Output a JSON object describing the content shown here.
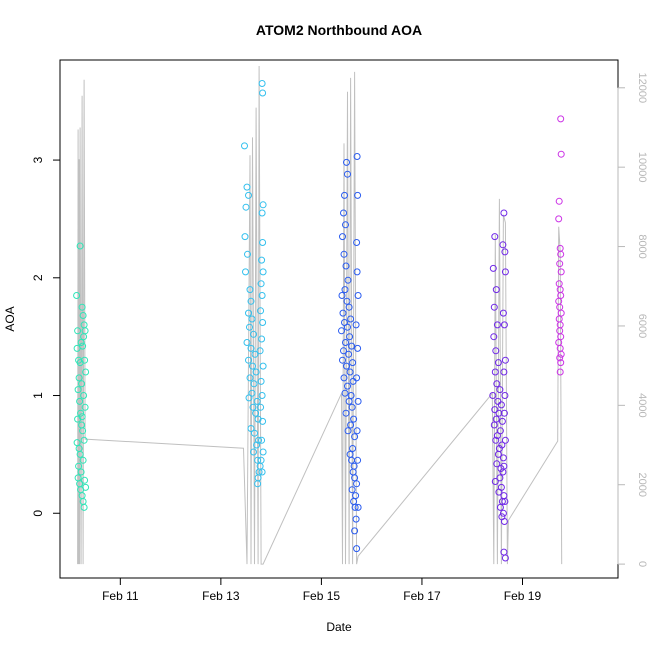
{
  "chart_data": {
    "type": "scatter",
    "title": "ATOM2 Northbound AOA",
    "xlabel": "Date",
    "ylabel": "AOA",
    "x_unit": "days (February)",
    "xlim": [
      9.8,
      20.9
    ],
    "ylim": [
      -0.55,
      3.85
    ],
    "y2lim": [
      -350,
      12700
    ],
    "x_ticks": [
      {
        "value": 11,
        "label": "Feb 11"
      },
      {
        "value": 13,
        "label": "Feb 13"
      },
      {
        "value": 15,
        "label": "Feb 15"
      },
      {
        "value": 17,
        "label": "Feb 17"
      },
      {
        "value": 19,
        "label": "Feb 19"
      }
    ],
    "y_ticks": [
      {
        "value": 0,
        "label": "0"
      },
      {
        "value": 1,
        "label": "1"
      },
      {
        "value": 2,
        "label": "2"
      },
      {
        "value": 3,
        "label": "3"
      }
    ],
    "y2_ticks": [
      {
        "value": 0,
        "label": "0"
      },
      {
        "value": 2000,
        "label": "2000"
      },
      {
        "value": 4000,
        "label": "4000"
      },
      {
        "value": 6000,
        "label": "6000"
      },
      {
        "value": 8000,
        "label": "8000"
      },
      {
        "value": 10000,
        "label": "10000"
      },
      {
        "value": 12000,
        "label": "12000"
      }
    ],
    "grid": false,
    "legend": "none",
    "series": [
      {
        "color": "#2ee6b8",
        "x_range": [
          10.12,
          10.32
        ],
        "points": [
          [
            10.13,
            1.85
          ],
          [
            10.15,
            1.55
          ],
          [
            10.14,
            1.4
          ],
          [
            10.17,
            1.3
          ],
          [
            10.2,
            1.28
          ],
          [
            10.22,
            1.45
          ],
          [
            10.18,
            1.15
          ],
          [
            10.16,
            1.05
          ],
          [
            10.19,
            0.95
          ],
          [
            10.21,
            0.85
          ],
          [
            10.15,
            0.8
          ],
          [
            10.23,
            0.75
          ],
          [
            10.25,
            0.7
          ],
          [
            10.14,
            0.6
          ],
          [
            10.18,
            0.55
          ],
          [
            10.2,
            0.5
          ],
          [
            10.17,
            0.4
          ],
          [
            10.22,
            0.35
          ],
          [
            10.16,
            0.3
          ],
          [
            10.19,
            0.25
          ],
          [
            10.21,
            0.2
          ],
          [
            10.24,
            0.15
          ],
          [
            10.26,
            0.1
          ],
          [
            10.28,
            0.05
          ],
          [
            10.2,
            2.27
          ],
          [
            10.24,
            1.75
          ],
          [
            10.26,
            1.68
          ],
          [
            10.28,
            1.6
          ],
          [
            10.3,
            1.55
          ],
          [
            10.27,
            1.5
          ],
          [
            10.25,
            1.42
          ],
          [
            10.29,
            1.3
          ],
          [
            10.31,
            1.2
          ],
          [
            10.23,
            1.1
          ],
          [
            10.27,
            1.0
          ],
          [
            10.3,
            0.9
          ],
          [
            10.24,
            0.82
          ],
          [
            10.28,
            0.62
          ],
          [
            10.26,
            0.45
          ],
          [
            10.29,
            0.28
          ],
          [
            10.31,
            0.22
          ]
        ]
      },
      {
        "color": "#33c0ee",
        "x_range": [
          13.45,
          13.88
        ],
        "points": [
          [
            13.47,
            3.12
          ],
          [
            13.52,
            2.77
          ],
          [
            13.55,
            2.7
          ],
          [
            13.5,
            2.6
          ],
          [
            13.48,
            2.35
          ],
          [
            13.53,
            2.2
          ],
          [
            13.49,
            2.05
          ],
          [
            13.58,
            1.9
          ],
          [
            13.6,
            1.8
          ],
          [
            13.55,
            1.7
          ],
          [
            13.62,
            1.65
          ],
          [
            13.57,
            1.58
          ],
          [
            13.65,
            1.52
          ],
          [
            13.52,
            1.45
          ],
          [
            13.6,
            1.4
          ],
          [
            13.68,
            1.35
          ],
          [
            13.55,
            1.3
          ],
          [
            13.63,
            1.25
          ],
          [
            13.7,
            1.2
          ],
          [
            13.58,
            1.15
          ],
          [
            13.66,
            1.1
          ],
          [
            13.62,
            1.02
          ],
          [
            13.56,
            0.98
          ],
          [
            13.72,
            0.95
          ],
          [
            13.64,
            0.9
          ],
          [
            13.69,
            0.85
          ],
          [
            13.74,
            0.8
          ],
          [
            13.6,
            0.72
          ],
          [
            13.67,
            0.68
          ],
          [
            13.75,
            0.62
          ],
          [
            13.71,
            0.58
          ],
          [
            13.65,
            0.52
          ],
          [
            13.73,
            0.45
          ],
          [
            13.78,
            0.4
          ],
          [
            13.76,
            0.35
          ],
          [
            13.74,
            0.3
          ],
          [
            13.73,
            0.25
          ],
          [
            13.82,
            3.65
          ],
          [
            13.83,
            3.57
          ],
          [
            13.84,
            2.62
          ],
          [
            13.82,
            2.55
          ],
          [
            13.83,
            2.3
          ],
          [
            13.81,
            2.15
          ],
          [
            13.84,
            2.05
          ],
          [
            13.8,
            1.95
          ],
          [
            13.82,
            1.85
          ],
          [
            13.79,
            1.72
          ],
          [
            13.83,
            1.62
          ],
          [
            13.81,
            1.48
          ],
          [
            13.78,
            1.38
          ],
          [
            13.84,
            1.25
          ],
          [
            13.8,
            1.12
          ],
          [
            13.82,
            1.0
          ],
          [
            13.79,
            0.9
          ],
          [
            13.83,
            0.78
          ],
          [
            13.81,
            0.62
          ],
          [
            13.84,
            0.52
          ],
          [
            13.8,
            0.45
          ],
          [
            13.82,
            0.35
          ]
        ]
      },
      {
        "color": "#2a5cf0",
        "x_range": [
          15.38,
          15.78
        ],
        "points": [
          [
            15.5,
            2.98
          ],
          [
            15.52,
            2.88
          ],
          [
            15.46,
            2.7
          ],
          [
            15.44,
            2.55
          ],
          [
            15.48,
            2.45
          ],
          [
            15.42,
            2.35
          ],
          [
            15.45,
            2.2
          ],
          [
            15.49,
            2.1
          ],
          [
            15.53,
            1.98
          ],
          [
            15.47,
            1.9
          ],
          [
            15.41,
            1.85
          ],
          [
            15.51,
            1.8
          ],
          [
            15.55,
            1.75
          ],
          [
            15.43,
            1.7
          ],
          [
            15.58,
            1.65
          ],
          [
            15.46,
            1.62
          ],
          [
            15.52,
            1.58
          ],
          [
            15.4,
            1.55
          ],
          [
            15.56,
            1.5
          ],
          [
            15.48,
            1.45
          ],
          [
            15.6,
            1.42
          ],
          [
            15.44,
            1.38
          ],
          [
            15.54,
            1.35
          ],
          [
            15.42,
            1.3
          ],
          [
            15.62,
            1.28
          ],
          [
            15.5,
            1.25
          ],
          [
            15.57,
            1.2
          ],
          [
            15.45,
            1.15
          ],
          [
            15.63,
            1.12
          ],
          [
            15.52,
            1.08
          ],
          [
            15.47,
            1.02
          ],
          [
            15.59,
            1.0
          ],
          [
            15.55,
            0.95
          ],
          [
            15.61,
            0.9
          ],
          [
            15.49,
            0.85
          ],
          [
            15.64,
            0.8
          ],
          [
            15.58,
            0.75
          ],
          [
            15.53,
            0.7
          ],
          [
            15.66,
            0.65
          ],
          [
            15.62,
            0.55
          ],
          [
            15.57,
            0.5
          ],
          [
            15.6,
            0.45
          ],
          [
            15.65,
            0.4
          ],
          [
            15.63,
            0.35
          ],
          [
            15.66,
            0.3
          ],
          [
            15.61,
            0.2
          ],
          [
            15.68,
            0.15
          ],
          [
            15.64,
            0.1
          ],
          [
            15.67,
            0.05
          ],
          [
            15.69,
            -0.05
          ],
          [
            15.66,
            -0.15
          ],
          [
            15.7,
            -0.3
          ],
          [
            15.71,
            3.03
          ],
          [
            15.72,
            2.7
          ],
          [
            15.7,
            2.3
          ],
          [
            15.71,
            2.05
          ],
          [
            15.73,
            1.85
          ],
          [
            15.69,
            1.6
          ],
          [
            15.72,
            1.4
          ],
          [
            15.7,
            1.15
          ],
          [
            15.73,
            0.95
          ],
          [
            15.71,
            0.7
          ],
          [
            15.72,
            0.45
          ],
          [
            15.7,
            0.25
          ],
          [
            15.73,
            0.05
          ]
        ]
      },
      {
        "color": "#7028e8",
        "x_range": [
          18.38,
          18.72
        ],
        "points": [
          [
            18.45,
            2.35
          ],
          [
            18.42,
            2.08
          ],
          [
            18.48,
            1.9
          ],
          [
            18.44,
            1.75
          ],
          [
            18.5,
            1.6
          ],
          [
            18.43,
            1.5
          ],
          [
            18.47,
            1.38
          ],
          [
            18.52,
            1.28
          ],
          [
            18.46,
            1.2
          ],
          [
            18.49,
            1.1
          ],
          [
            18.55,
            1.05
          ],
          [
            18.41,
            1.0
          ],
          [
            18.51,
            0.95
          ],
          [
            18.58,
            0.92
          ],
          [
            18.45,
            0.88
          ],
          [
            18.53,
            0.85
          ],
          [
            18.48,
            0.8
          ],
          [
            18.6,
            0.78
          ],
          [
            18.44,
            0.75
          ],
          [
            18.56,
            0.7
          ],
          [
            18.5,
            0.66
          ],
          [
            18.47,
            0.62
          ],
          [
            18.59,
            0.58
          ],
          [
            18.54,
            0.55
          ],
          [
            18.52,
            0.5
          ],
          [
            18.62,
            0.47
          ],
          [
            18.49,
            0.42
          ],
          [
            18.57,
            0.38
          ],
          [
            18.61,
            0.35
          ],
          [
            18.55,
            0.3
          ],
          [
            18.46,
            0.27
          ],
          [
            18.58,
            0.22
          ],
          [
            18.53,
            0.18
          ],
          [
            18.63,
            0.15
          ],
          [
            18.6,
            0.1
          ],
          [
            18.56,
            0.05
          ],
          [
            18.62,
            0.0
          ],
          [
            18.59,
            -0.03
          ],
          [
            18.64,
            -0.07
          ],
          [
            18.63,
            2.55
          ],
          [
            18.61,
            2.28
          ],
          [
            18.65,
            2.22
          ],
          [
            18.66,
            2.05
          ],
          [
            18.62,
            1.7
          ],
          [
            18.64,
            1.6
          ],
          [
            18.66,
            1.3
          ],
          [
            18.63,
            1.2
          ],
          [
            18.65,
            1.0
          ],
          [
            18.64,
            0.85
          ],
          [
            18.66,
            0.62
          ],
          [
            18.63,
            0.4
          ],
          [
            18.65,
            0.1
          ],
          [
            18.63,
            -0.33
          ],
          [
            18.66,
            -0.38
          ]
        ]
      },
      {
        "color": "#cc33e6",
        "x_range": [
          19.68,
          19.8
        ],
        "points": [
          [
            19.76,
            3.35
          ],
          [
            19.77,
            3.05
          ],
          [
            19.73,
            2.65
          ],
          [
            19.72,
            2.5
          ],
          [
            19.75,
            2.25
          ],
          [
            19.76,
            2.2
          ],
          [
            19.74,
            2.12
          ],
          [
            19.77,
            2.05
          ],
          [
            19.73,
            1.95
          ],
          [
            19.75,
            1.9
          ],
          [
            19.76,
            1.85
          ],
          [
            19.72,
            1.8
          ],
          [
            19.74,
            1.75
          ],
          [
            19.77,
            1.7
          ],
          [
            19.73,
            1.65
          ],
          [
            19.75,
            1.6
          ],
          [
            19.74,
            1.55
          ],
          [
            19.76,
            1.5
          ],
          [
            19.72,
            1.45
          ],
          [
            19.75,
            1.4
          ],
          [
            19.77,
            1.35
          ],
          [
            19.74,
            1.32
          ],
          [
            19.76,
            1.28
          ],
          [
            19.75,
            1.2
          ]
        ]
      }
    ],
    "secondary_line": {
      "color": "#c0c0c0",
      "axis": "right",
      "points": [
        [
          10.15,
          0
        ],
        [
          10.16,
          10950
        ],
        [
          10.17,
          0
        ],
        [
          10.18,
          10200
        ],
        [
          10.19,
          0
        ],
        [
          10.2,
          11000
        ],
        [
          10.22,
          0
        ],
        [
          10.24,
          11800
        ],
        [
          10.26,
          0
        ],
        [
          10.28,
          12200
        ],
        [
          10.3,
          3150
        ],
        [
          13.45,
          2920
        ],
        [
          13.52,
          0
        ],
        [
          13.58,
          10300
        ],
        [
          13.6,
          0
        ],
        [
          13.63,
          10750
        ],
        [
          13.67,
          0
        ],
        [
          13.7,
          11500
        ],
        [
          13.74,
          0
        ],
        [
          13.76,
          12550
        ],
        [
          13.8,
          0
        ],
        [
          13.84,
          0
        ],
        [
          15.4,
          4300
        ],
        [
          15.42,
          0
        ],
        [
          15.45,
          10600
        ],
        [
          15.48,
          0
        ],
        [
          15.52,
          11900
        ],
        [
          15.55,
          0
        ],
        [
          15.58,
          12250
        ],
        [
          15.62,
          0
        ],
        [
          15.66,
          12400
        ],
        [
          15.7,
          0
        ],
        [
          15.73,
          200
        ],
        [
          18.4,
          4300
        ],
        [
          18.43,
          0
        ],
        [
          18.46,
          8300
        ],
        [
          18.5,
          0
        ],
        [
          18.54,
          9200
        ],
        [
          18.58,
          0
        ],
        [
          18.62,
          8800
        ],
        [
          18.66,
          8600
        ],
        [
          18.7,
          0
        ],
        [
          18.72,
          1100
        ],
        [
          19.7,
          3100
        ],
        [
          19.72,
          8500
        ],
        [
          19.75,
          7900
        ],
        [
          19.78,
          0
        ]
      ]
    }
  }
}
